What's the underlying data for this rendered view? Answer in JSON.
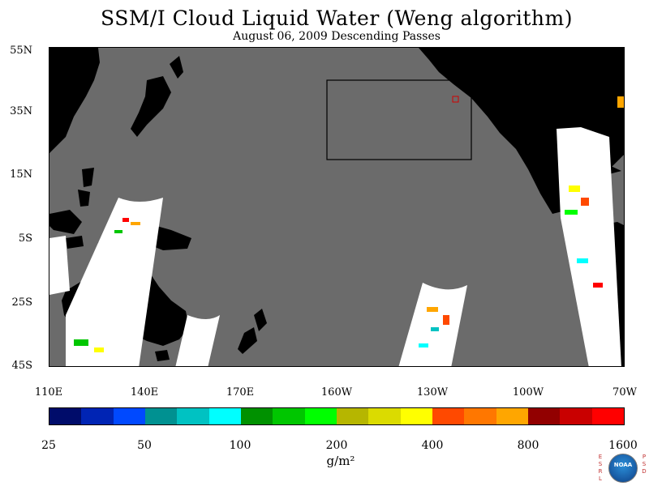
{
  "title": "SSM/I Cloud Liquid Water (Weng algorithm)",
  "subtitle": "August 06, 2009  Descending Passes",
  "map": {
    "lat_labels": [
      "55N",
      "35N",
      "15N",
      "5S",
      "25S",
      "45S"
    ],
    "lon_labels": [
      "110E",
      "140E",
      "170E",
      "160W",
      "130W",
      "100W",
      "70W"
    ],
    "lat_range": [
      -45,
      55
    ],
    "lon_range_east": [
      110,
      290
    ],
    "ocean_color": "#6b6b6b",
    "land_color": "#000000",
    "no_data_color": "#ffffff"
  },
  "colorbar": {
    "colors": [
      "#000c6a",
      "#0024b4",
      "#0049ff",
      "#009191",
      "#00c2c2",
      "#00ffff",
      "#009100",
      "#00c600",
      "#00ff00",
      "#b6b600",
      "#dbdb00",
      "#ffff00",
      "#ff4900",
      "#ff7700",
      "#ffa600",
      "#920000",
      "#c90000",
      "#ff0000"
    ],
    "labels": [
      "25",
      "50",
      "100",
      "200",
      "400",
      "800",
      "1600"
    ],
    "units": "g/m²"
  },
  "logo": {
    "left_letters": [
      "E",
      "S",
      "R",
      "L"
    ],
    "right_letters": [
      "P",
      "S",
      "D"
    ],
    "center_text": "NOAA"
  }
}
